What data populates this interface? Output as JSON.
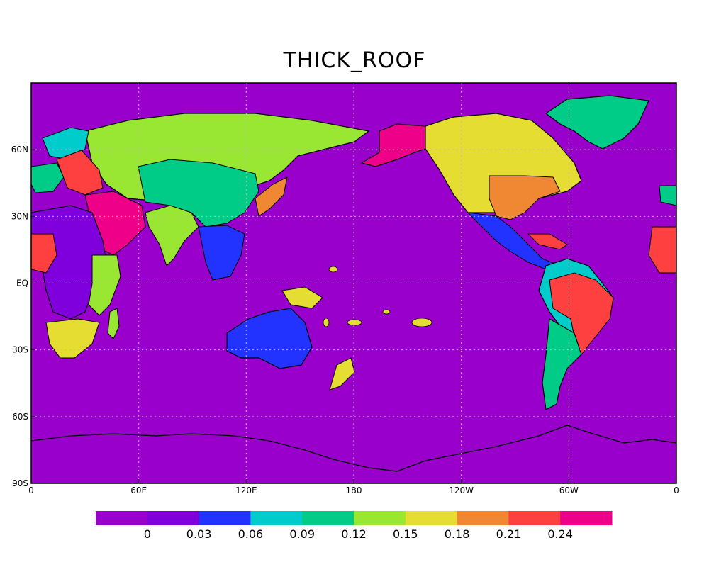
{
  "map": {
    "title": "THICK_ROOF",
    "ocean_color": "#9900cc",
    "lon_ticks": [
      "0",
      "60E",
      "120E",
      "180",
      "120W",
      "60W",
      "0"
    ],
    "lat_ticks": [
      "60N",
      "30N",
      "EQ",
      "30S",
      "60S",
      "90S"
    ]
  },
  "colorbar": {
    "colors": [
      "#9900cc",
      "#7f00dd",
      "#2233ff",
      "#00cccc",
      "#00cc88",
      "#99e633",
      "#e6dd33",
      "#f08833",
      "#ff4040",
      "#ee0088"
    ],
    "labels": [
      "0",
      "0.03",
      "0.06",
      "0.09",
      "0.12",
      "0.15",
      "0.18",
      "0.21",
      "0.24"
    ]
  }
}
